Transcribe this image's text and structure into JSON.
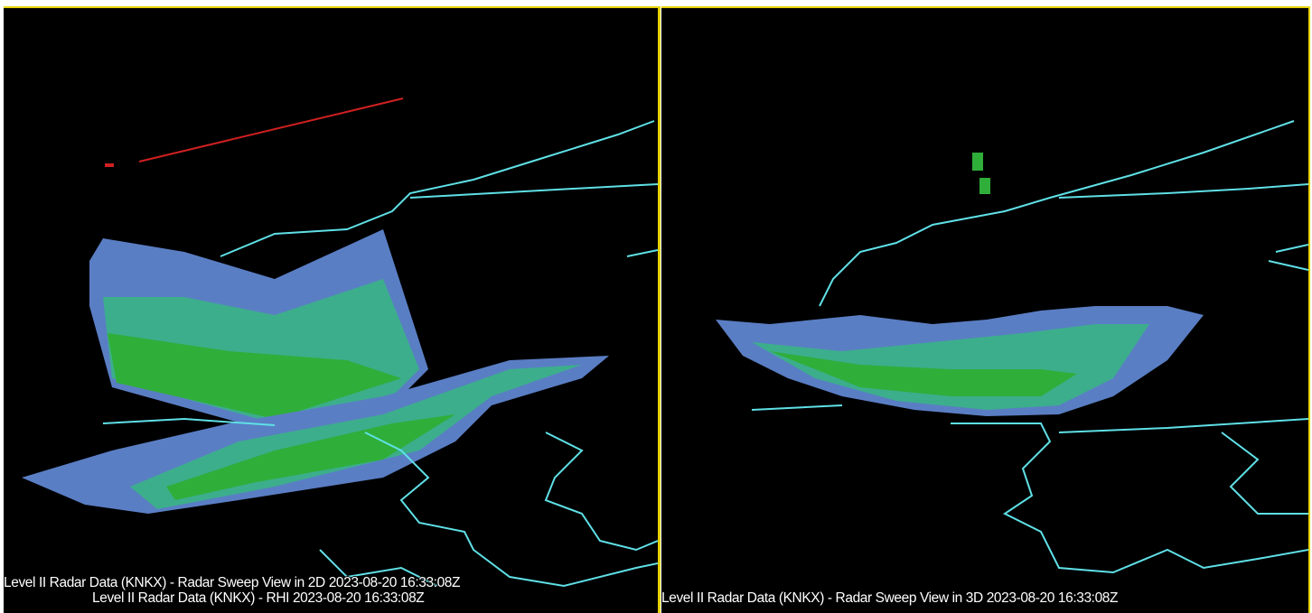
{
  "left_panel": {
    "caption_top": "Level II Radar Data (KNKX) - Radar Sweep View in 2D 2023-08-20 16:33:08Z",
    "caption_bottom": "Level II Radar Data (KNKX) - RHI 2023-08-20 16:33:08Z"
  },
  "right_panel": {
    "caption": "Level II Radar Data (KNKX) - Radar Sweep View in 3D 2023-08-20 16:33:08Z"
  }
}
